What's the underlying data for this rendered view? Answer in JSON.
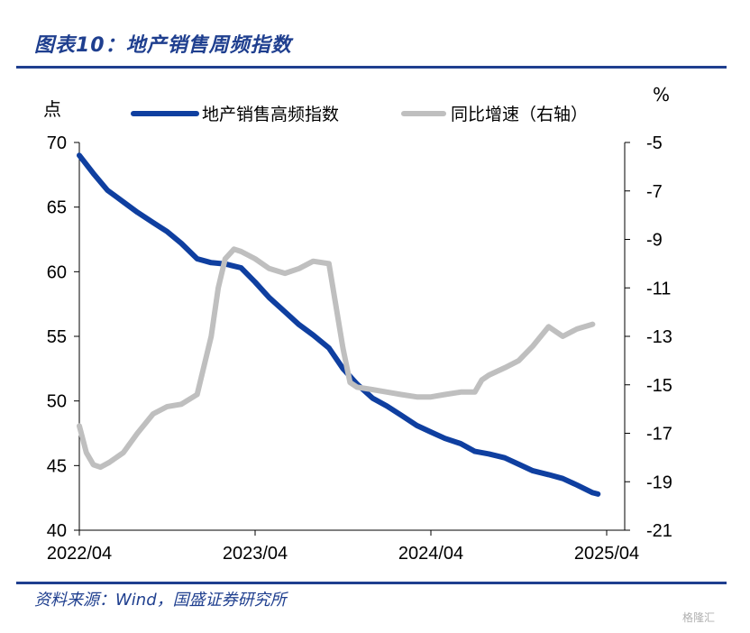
{
  "header": {
    "title": "图表10：地产销售周频指数"
  },
  "footer": {
    "source": "资料来源：Wind，国盛证券研究所",
    "watermark": "格隆汇"
  },
  "chart_data": {
    "type": "line",
    "left_unit": "点",
    "right_unit": "%",
    "x_ticks": [
      "2022/04",
      "2023/04",
      "2024/04",
      "2025/04"
    ],
    "left_axis": {
      "ylim": [
        40,
        70
      ],
      "ticks": [
        "70",
        "65",
        "60",
        "55",
        "50",
        "45",
        "40"
      ]
    },
    "right_axis": {
      "ylim": [
        -21,
        -5
      ],
      "ticks": [
        "-5",
        "-7",
        "-9",
        "-11",
        "-13",
        "-15",
        "-17",
        "-19",
        "-21"
      ]
    },
    "legend": {
      "position": "top"
    },
    "series": [
      {
        "name": "地产销售高频指数",
        "axis": "left",
        "color": "#0f3fa0",
        "x": [
          0,
          0.08,
          0.16,
          0.25,
          0.33,
          0.42,
          0.5,
          0.58,
          0.67,
          0.75,
          0.83,
          0.92,
          1.0,
          1.08,
          1.17,
          1.25,
          1.33,
          1.42,
          1.5,
          1.58,
          1.67,
          1.75,
          1.83,
          1.92,
          2.0,
          2.08,
          2.17,
          2.25,
          2.33,
          2.42,
          2.5,
          2.58,
          2.67,
          2.75,
          2.83,
          2.92,
          2.95
        ],
        "values": [
          69.0,
          67.6,
          66.3,
          65.4,
          64.6,
          63.8,
          63.1,
          62.2,
          61.0,
          60.7,
          60.6,
          60.3,
          59.2,
          58.0,
          56.9,
          55.9,
          55.1,
          54.1,
          52.5,
          51.3,
          50.2,
          49.6,
          48.9,
          48.1,
          47.6,
          47.1,
          46.7,
          46.1,
          45.9,
          45.6,
          45.1,
          44.6,
          44.3,
          44.0,
          43.5,
          42.9,
          42.8
        ]
      },
      {
        "name": "同比增速（右轴）",
        "axis": "right",
        "color": "#bfbfbf",
        "x": [
          0,
          0.04,
          0.08,
          0.12,
          0.17,
          0.25,
          0.33,
          0.42,
          0.5,
          0.58,
          0.67,
          0.75,
          0.79,
          0.83,
          0.88,
          0.92,
          1.0,
          1.08,
          1.17,
          1.25,
          1.33,
          1.42,
          1.5,
          1.54,
          1.58,
          1.67,
          1.75,
          1.83,
          1.92,
          2.0,
          2.08,
          2.17,
          2.25,
          2.29,
          2.33,
          2.42,
          2.5,
          2.58,
          2.67,
          2.75,
          2.83,
          2.92
        ],
        "values": [
          -16.7,
          -17.8,
          -18.3,
          -18.4,
          -18.2,
          -17.8,
          -17.0,
          -16.2,
          -15.9,
          -15.8,
          -15.4,
          -13.0,
          -11.0,
          -9.8,
          -9.4,
          -9.5,
          -9.8,
          -10.2,
          -10.4,
          -10.2,
          -9.9,
          -10.0,
          -13.5,
          -14.9,
          -15.1,
          -15.2,
          -15.3,
          -15.4,
          -15.5,
          -15.5,
          -15.4,
          -15.3,
          -15.3,
          -14.8,
          -14.6,
          -14.3,
          -14.0,
          -13.4,
          -12.6,
          -13.0,
          -12.7,
          -12.5
        ]
      }
    ]
  }
}
